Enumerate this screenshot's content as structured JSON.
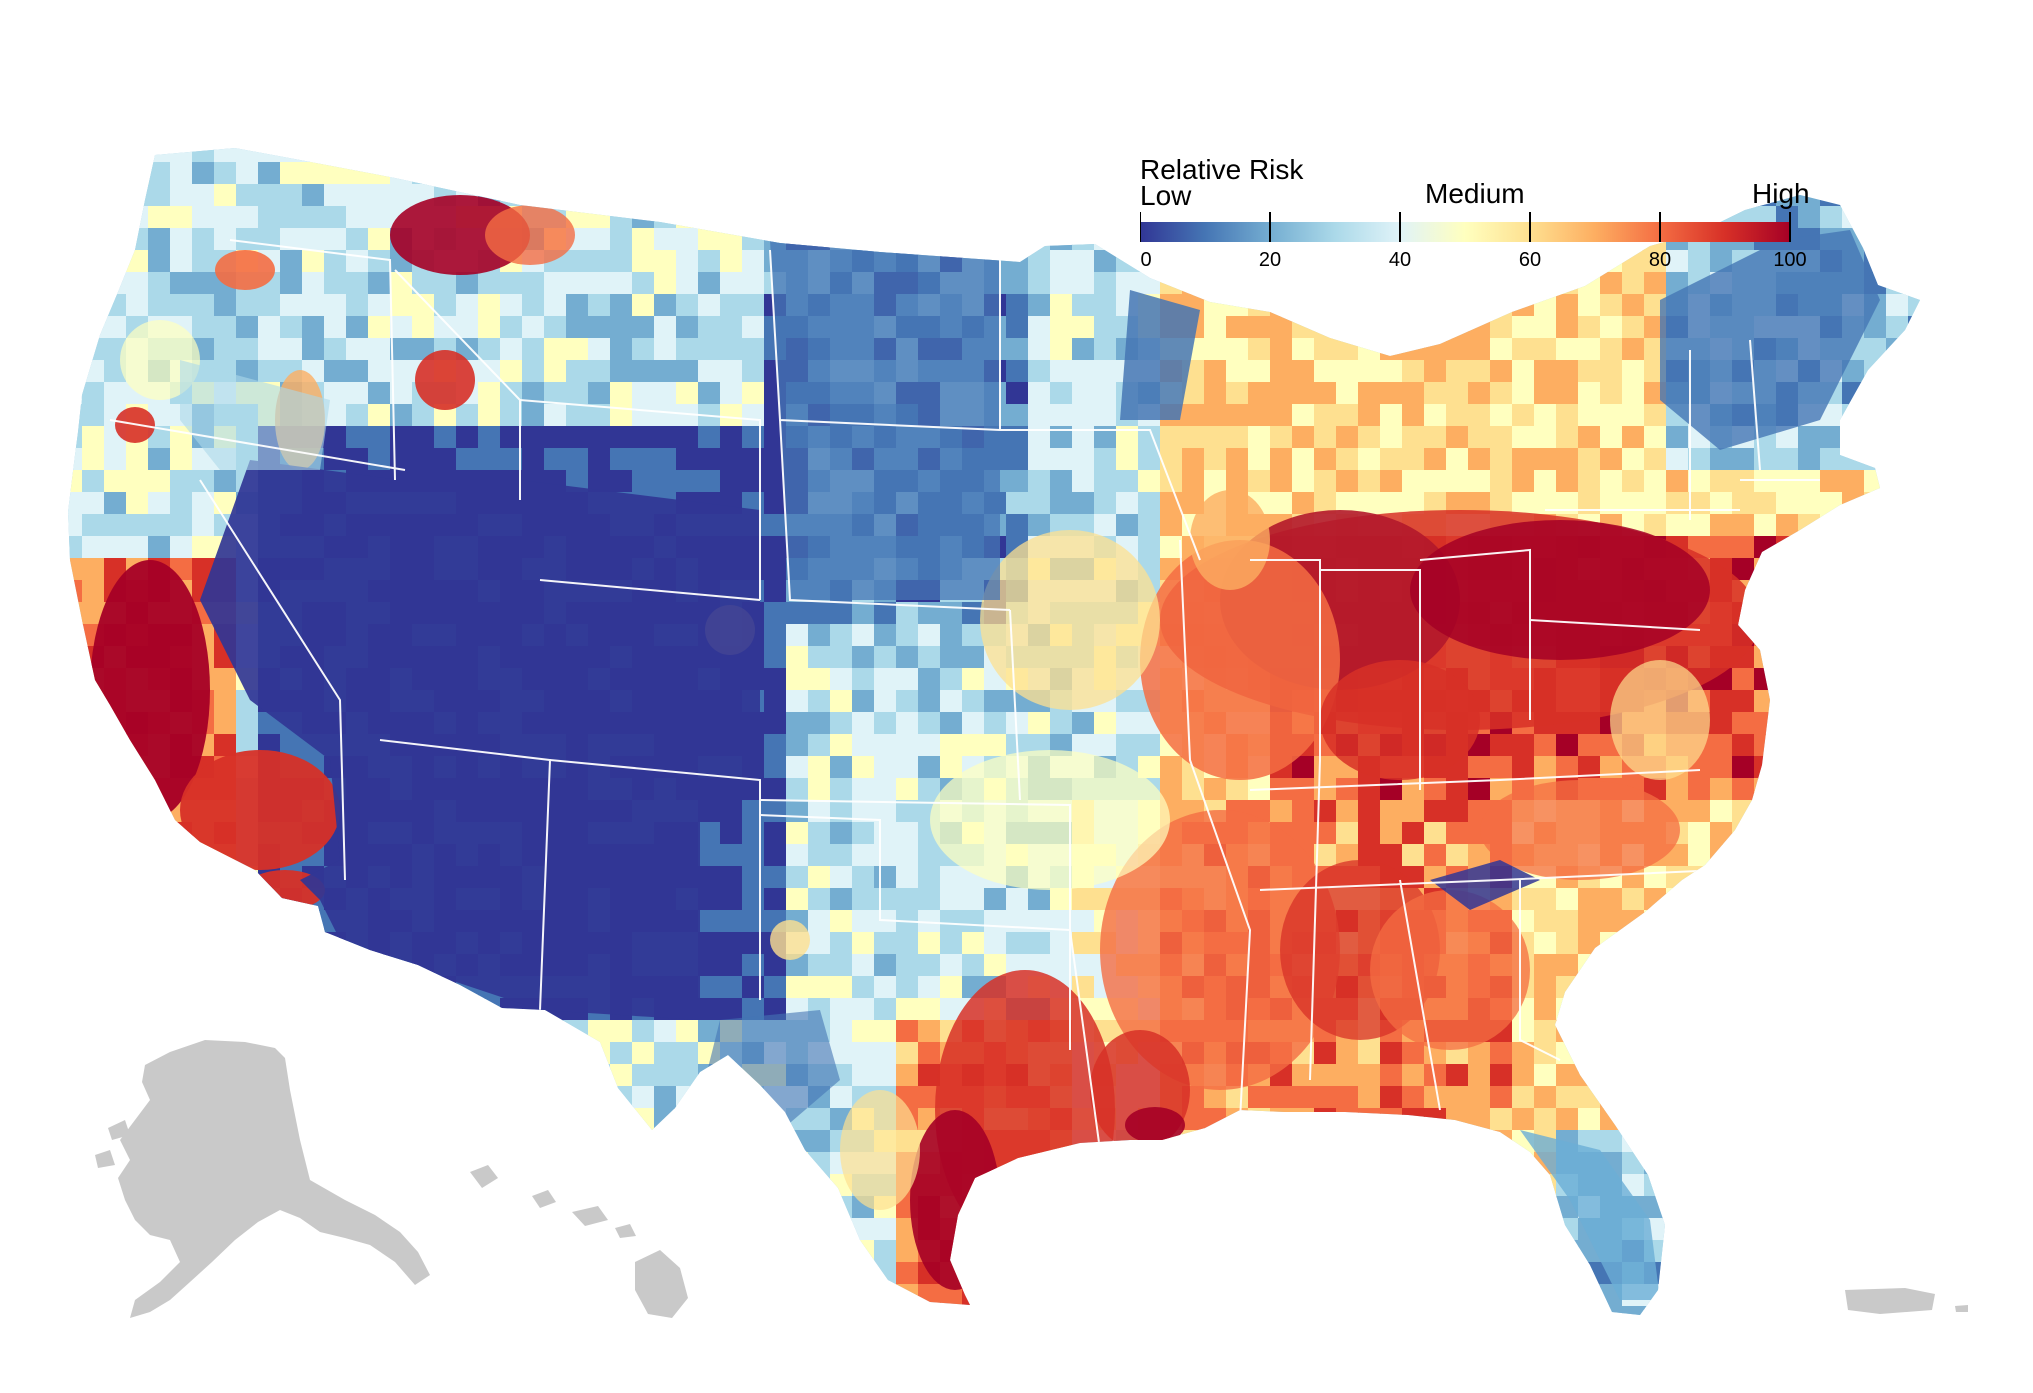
{
  "legend": {
    "title": "Relative Risk",
    "low_label": "Low",
    "medium_label": "Medium",
    "high_label": "High",
    "ticks": [
      "0",
      "20",
      "40",
      "60",
      "80",
      "100"
    ],
    "range": [
      0,
      100
    ],
    "palette": [
      "#313695",
      "#4575b4",
      "#74add1",
      "#abd9e9",
      "#e0f3f8",
      "#ffffbf",
      "#fee090",
      "#fdae61",
      "#f46d43",
      "#d73027",
      "#a50026"
    ]
  },
  "map": {
    "region": "Contiguous United States by county",
    "insets": [
      "Alaska",
      "Hawaii",
      "Puerto Rico"
    ],
    "inset_color": "#c9c9c9",
    "state_border_color": "#ffffff"
  }
}
